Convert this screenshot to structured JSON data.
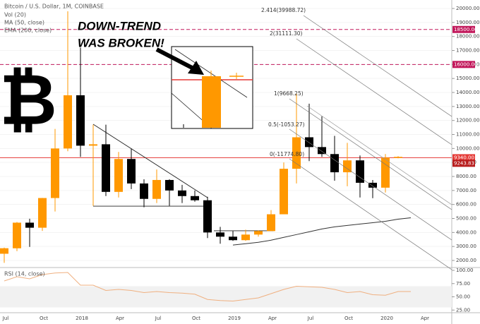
{
  "chart_data": [
    {
      "type": "candlestick",
      "title": "Bitcoin / U.S. Dollar, 1M, COINBASE",
      "indicators": [
        "Vol (20)",
        "MA (50, close)",
        "EMA (200, close)"
      ],
      "categories": [
        "Jul",
        null,
        null,
        "Oct",
        null,
        null,
        "2018",
        null,
        null,
        "Apr",
        null,
        null,
        "Jul",
        null,
        null,
        "Oct",
        null,
        null,
        "2019",
        null,
        null,
        "Apr",
        null,
        null,
        "Jul",
        null,
        null,
        "Oct",
        null,
        null,
        "2020",
        null,
        null,
        "Apr"
      ],
      "open": [
        2480,
        2870,
        4700,
        4340,
        6460,
        10000,
        13800,
        10200,
        10300,
        6900,
        9250,
        7500,
        6400,
        7750,
        7000,
        6600,
        6300,
        4000,
        3700,
        3450,
        3850,
        4100,
        5300,
        8550,
        10800,
        10100,
        9600,
        8300,
        9150,
        7550,
        7200,
        9350,
        null,
        null
      ],
      "high": [
        2920,
        4750,
        4980,
        6470,
        11400,
        19800,
        17200,
        11700,
        11700,
        9750,
        10000,
        7800,
        8500,
        7800,
        7400,
        7000,
        6550,
        4400,
        4100,
        4200,
        4150,
        5600,
        9000,
        13900,
        13200,
        12300,
        10900,
        10400,
        9500,
        7750,
        9600,
        9450,
        null,
        null
      ],
      "low": [
        1830,
        2670,
        2970,
        4110,
        5500,
        9800,
        9400,
        5900,
        6600,
        6500,
        7100,
        5800,
        6100,
        5900,
        6100,
        6200,
        3600,
        3200,
        3400,
        3400,
        3700,
        4100,
        5300,
        7500,
        9100,
        9400,
        7700,
        7300,
        6500,
        6450,
        6850,
        9300,
        null,
        null
      ],
      "close": [
        2875,
        4700,
        4340,
        6460,
        10000,
        13800,
        10200,
        10300,
        6900,
        9250,
        7500,
        6400,
        7750,
        7000,
        6600,
        6300,
        4000,
        3700,
        3450,
        3850,
        4100,
        5300,
        8550,
        10800,
        10100,
        9600,
        8300,
        9150,
        7550,
        7200,
        9350,
        9400,
        null,
        null
      ],
      "up_color": "#ff9800",
      "down_color": "#000000",
      "ma_values": [
        null,
        null,
        null,
        null,
        null,
        null,
        null,
        null,
        null,
        null,
        null,
        null,
        null,
        null,
        null,
        null,
        null,
        null,
        3100,
        3200,
        3300,
        3450,
        3650,
        3850,
        4050,
        4250,
        4400,
        4500,
        4600,
        4700,
        4800,
        4950,
        5050,
        null
      ],
      "ma_color": "#333333",
      "ylim": [
        1546,
        20606
      ],
      "yticks": [
        {
          "value": 2000,
          "label": "2000.00"
        },
        {
          "value": 3000,
          "label": "3000.00"
        },
        {
          "value": 4000,
          "label": "4000.00"
        },
        {
          "value": 5000,
          "label": "5000.00"
        },
        {
          "value": 6000,
          "label": "6000.00"
        },
        {
          "value": 7000,
          "label": "7000.00"
        },
        {
          "value": 8000,
          "label": "8000.00"
        },
        {
          "value": 9000,
          "label": "9000.00"
        },
        {
          "value": 10000,
          "label": "10000.00"
        },
        {
          "value": 11000,
          "label": "11000.00"
        },
        {
          "value": 12000,
          "label": "12000.00"
        },
        {
          "value": 13000,
          "label": "13000.00"
        },
        {
          "value": 14000,
          "label": "14000.00"
        },
        {
          "value": 15000,
          "label": "15000.00"
        },
        {
          "value": 16000,
          "label": "16000.00"
        },
        {
          "value": 17000,
          "label": "17000.00"
        },
        {
          "value": 18000,
          "label": "18000.00"
        },
        {
          "value": 19000,
          "label": "19000.00"
        },
        {
          "value": 20000,
          "label": "20000.00"
        }
      ],
      "hlines": [
        {
          "value": 18500,
          "label": "18500.00",
          "style": "dashed",
          "color": "#c2185b"
        },
        {
          "value": 16000,
          "label": "16000.00",
          "style": "dashed",
          "color": "#c2185b"
        },
        {
          "value": 9340,
          "label": "9340.00",
          "style": "solid",
          "color": "#e53935"
        }
      ],
      "price_labels": [
        {
          "value": 9243.83,
          "label": "9243.83",
          "color": "#b71c1c"
        }
      ],
      "trendlines": [
        {
          "x": [
            7,
            16
          ],
          "y": [
            11730,
            6490
          ]
        },
        {
          "x": [
            7,
            16
          ],
          "y": [
            5880,
            5880
          ]
        },
        {
          "x": [
            16.5,
            21.2
          ],
          "y": [
            4120,
            4120
          ]
        }
      ],
      "fib_labels": [
        "2.414(39988.72)",
        "2(31111.30)",
        "1(9668.25)",
        "0.5(-1053.27)",
        "0(-11774.80)"
      ],
      "annotation": [
        "DOWN-TREND",
        "WAS BROKEN!"
      ],
      "logo": "₿"
    },
    {
      "type": "line",
      "title": "RSI (14, close)",
      "values": [
        80,
        88,
        84,
        92,
        95,
        96,
        72,
        72,
        62,
        64,
        62,
        58,
        60,
        58,
        57,
        55,
        45,
        43,
        42,
        45,
        48,
        56,
        64,
        70,
        69,
        68,
        64,
        58,
        60,
        54,
        53,
        60,
        60,
        null
      ],
      "color": "#f0b080",
      "band": [
        30,
        70
      ],
      "ylim": [
        20,
        104
      ],
      "yticks": [
        {
          "value": 100,
          "label": "100.00"
        },
        {
          "value": 75,
          "label": "75.00"
        },
        {
          "value": 50,
          "label": "50.00"
        },
        {
          "value": 25,
          "label": "25.00"
        }
      ]
    }
  ]
}
